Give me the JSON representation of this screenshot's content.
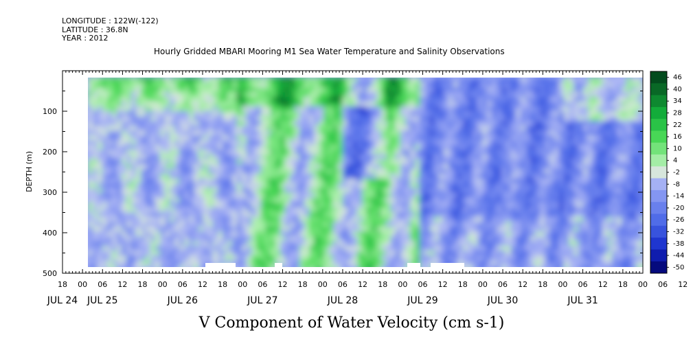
{
  "header": {
    "longitude": "LONGITUDE : 122W(-122)",
    "latitude": "LATITUDE : 36.8N",
    "year": "YEAR : 2012"
  },
  "chart_data": {
    "type": "heatmap",
    "title": "Hourly Gridded MBARI Mooring M1 Sea Water Temperature and Salinity Observations",
    "subtitle": "V Component of Water Velocity (cm s-1)",
    "ylabel": "DEPTH (m)",
    "xlabel": "",
    "ylim": [
      500,
      0
    ],
    "yticks": [
      100,
      200,
      300,
      400,
      500
    ],
    "x_range_hours": [
      0,
      174
    ],
    "xtick_labels": [
      "18",
      "00",
      "06",
      "12",
      "18",
      "00",
      "06",
      "12",
      "18",
      "00",
      "06",
      "12",
      "18",
      "00",
      "06",
      "12",
      "18",
      "00",
      "06",
      "12",
      "18",
      "00",
      "06",
      "12",
      "18",
      "00",
      "06",
      "12",
      "18",
      "00",
      "06",
      "12",
      "18"
    ],
    "date_labels": [
      {
        "label": "JUL 24",
        "hour": 0
      },
      {
        "label": "JUL 25",
        "hour": 12
      },
      {
        "label": "JUL 26",
        "hour": 36
      },
      {
        "label": "JUL 27",
        "hour": 60
      },
      {
        "label": "JUL 28",
        "hour": 84
      },
      {
        "label": "JUL 29",
        "hour": 108
      },
      {
        "label": "JUL 30",
        "hour": 132
      },
      {
        "label": "JUL 31",
        "hour": 156
      }
    ],
    "colorbar_levels": [
      "46",
      "40",
      "34",
      "28",
      "22",
      "16",
      "10",
      "4",
      "-2",
      "-8",
      "-14",
      "-20",
      "-26",
      "-32",
      "-38",
      "-44",
      "-50"
    ],
    "colorbar_range": [
      -50,
      50
    ],
    "data_extent": {
      "depth_min": 20,
      "depth_max": 485,
      "hour_start": 7,
      "hour_end": 172
    },
    "regimes": [
      {
        "hour_start": 7,
        "hour_end": 52,
        "description_value": -4
      },
      {
        "hour_start": 52,
        "hour_end": 106,
        "description_value": 6
      },
      {
        "hour_start": 106,
        "hour_end": 172,
        "description_value": -14
      }
    ],
    "grid": false,
    "legend": "colorbar-right"
  }
}
